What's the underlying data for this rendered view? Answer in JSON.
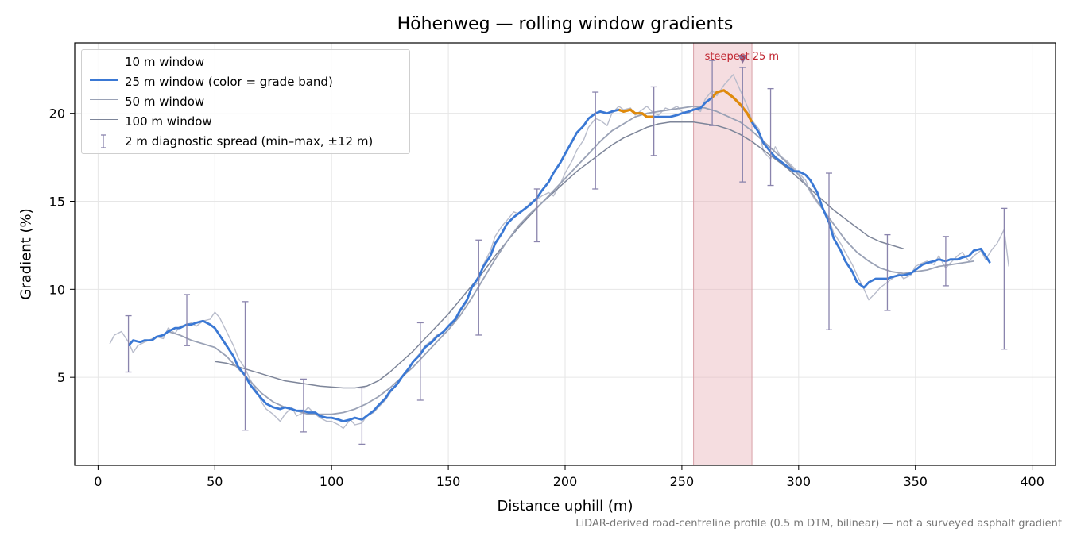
{
  "chart_data": {
    "type": "line",
    "title": "Höhenweg — rolling window gradients",
    "xlabel": "Distance uphill (m)",
    "ylabel": "Gradient (%)",
    "xlim": [
      -10,
      410
    ],
    "ylim": [
      0,
      24
    ],
    "xticks": [
      0,
      50,
      100,
      150,
      200,
      250,
      300,
      350,
      400
    ],
    "yticks": [
      5,
      10,
      15,
      20
    ],
    "grid": true,
    "legend_position": "top-left",
    "series": [
      {
        "name": "10 m window",
        "color": "#b8bccb",
        "x": [
          5,
          7,
          10,
          13,
          15,
          17,
          20,
          25,
          28,
          30,
          33,
          35,
          38,
          40,
          42,
          45,
          48,
          50,
          52,
          55,
          58,
          60,
          63,
          65,
          68,
          70,
          72,
          75,
          78,
          80,
          83,
          85,
          88,
          90,
          93,
          95,
          98,
          100,
          103,
          105,
          108,
          110,
          113,
          115,
          118,
          120,
          123,
          125,
          128,
          130,
          133,
          135,
          138,
          140,
          143,
          145,
          148,
          150,
          153,
          155,
          158,
          160,
          163,
          165,
          168,
          170,
          173,
          175,
          178,
          180,
          183,
          185,
          188,
          190,
          193,
          195,
          198,
          200,
          203,
          205,
          208,
          210,
          213,
          215,
          218,
          220,
          223,
          225,
          228,
          230,
          233,
          235,
          238,
          240,
          243,
          245,
          248,
          250,
          253,
          255,
          258,
          260,
          263,
          265,
          268,
          270,
          272,
          275,
          278,
          280,
          283,
          285,
          288,
          290,
          292,
          295,
          298,
          300,
          303,
          305,
          308,
          310,
          313,
          315,
          318,
          320,
          323,
          325,
          328,
          330,
          333,
          335,
          338,
          340,
          343,
          345,
          348,
          350,
          353,
          355,
          358,
          360,
          363,
          365,
          368,
          370,
          373,
          375,
          378,
          380,
          383,
          385,
          388,
          390
        ],
        "y": [
          6.9,
          7.4,
          7.6,
          7.0,
          6.4,
          6.8,
          7.0,
          7.3,
          7.2,
          7.8,
          7.5,
          7.9,
          8.0,
          8.1,
          7.9,
          8.2,
          8.3,
          8.7,
          8.4,
          7.6,
          6.8,
          6.1,
          5.5,
          4.9,
          4.2,
          3.6,
          3.2,
          2.9,
          2.5,
          2.9,
          3.3,
          2.8,
          3.0,
          3.3,
          2.9,
          2.7,
          2.5,
          2.5,
          2.3,
          2.1,
          2.6,
          2.3,
          2.4,
          2.8,
          3.0,
          3.3,
          3.7,
          4.1,
          4.6,
          5.0,
          5.5,
          5.9,
          6.4,
          6.8,
          7.1,
          7.4,
          7.6,
          7.9,
          8.2,
          8.7,
          9.3,
          10.1,
          10.4,
          11.4,
          12.2,
          13.0,
          13.6,
          13.9,
          14.4,
          14.3,
          14.6,
          14.9,
          15.1,
          15.3,
          15.5,
          15.3,
          16.0,
          16.6,
          17.3,
          17.9,
          18.5,
          19.2,
          19.7,
          19.6,
          19.3,
          20.0,
          20.4,
          20.2,
          20.3,
          19.9,
          20.2,
          20.4,
          20.0,
          19.9,
          20.3,
          20.2,
          20.4,
          20.1,
          20.0,
          20.3,
          20.1,
          20.8,
          21.3,
          21.0,
          21.6,
          21.9,
          22.2,
          21.3,
          20.4,
          19.6,
          19.1,
          17.8,
          17.4,
          18.1,
          17.6,
          17.3,
          16.9,
          16.6,
          16.2,
          15.5,
          14.9,
          14.6,
          14.0,
          13.2,
          12.6,
          12.1,
          11.4,
          10.8,
          10.0,
          9.4,
          9.8,
          10.1,
          10.4,
          10.6,
          10.9,
          10.6,
          10.8,
          11.3,
          11.5,
          11.6,
          11.4,
          11.9,
          11.2,
          11.5,
          11.9,
          12.1,
          11.6,
          11.9,
          12.2,
          11.7,
          12.3,
          12.6,
          13.4,
          11.3
        ]
      },
      {
        "name": "25 m window (color = grade band)",
        "color": "#3a78d4",
        "band_color": "#e08a0b",
        "band_ranges": [
          [
            222,
            238
          ],
          [
            262,
            280
          ]
        ],
        "x": [
          13,
          15,
          18,
          20,
          23,
          25,
          28,
          30,
          33,
          35,
          38,
          40,
          42,
          45,
          48,
          50,
          52,
          55,
          58,
          60,
          63,
          65,
          68,
          70,
          72,
          75,
          78,
          80,
          83,
          85,
          88,
          90,
          93,
          95,
          98,
          100,
          103,
          105,
          108,
          110,
          113,
          115,
          118,
          120,
          123,
          125,
          128,
          130,
          133,
          135,
          138,
          140,
          143,
          145,
          148,
          150,
          153,
          155,
          158,
          160,
          163,
          165,
          168,
          170,
          173,
          175,
          178,
          180,
          183,
          185,
          188,
          190,
          193,
          195,
          198,
          200,
          203,
          205,
          208,
          210,
          213,
          215,
          218,
          220,
          223,
          225,
          228,
          230,
          233,
          235,
          238,
          240,
          243,
          245,
          248,
          250,
          253,
          255,
          258,
          260,
          263,
          265,
          268,
          270,
          272,
          275,
          278,
          280,
          283,
          285,
          288,
          290,
          292,
          295,
          298,
          300,
          303,
          305,
          308,
          310,
          313,
          315,
          318,
          320,
          323,
          325,
          328,
          330,
          333,
          335,
          338,
          340,
          343,
          345,
          348,
          350,
          353,
          355,
          358,
          360,
          363,
          365,
          368,
          370,
          373,
          375,
          378,
          380,
          382
        ],
        "y": [
          6.8,
          7.1,
          7.0,
          7.1,
          7.1,
          7.3,
          7.4,
          7.6,
          7.8,
          7.8,
          8.0,
          8.0,
          8.1,
          8.2,
          8.0,
          7.8,
          7.4,
          6.8,
          6.2,
          5.6,
          5.1,
          4.6,
          4.1,
          3.8,
          3.5,
          3.3,
          3.2,
          3.3,
          3.2,
          3.1,
          3.1,
          3.0,
          3.0,
          2.8,
          2.7,
          2.7,
          2.6,
          2.5,
          2.6,
          2.7,
          2.6,
          2.8,
          3.1,
          3.4,
          3.8,
          4.2,
          4.6,
          5.0,
          5.5,
          5.9,
          6.3,
          6.7,
          7.0,
          7.3,
          7.6,
          7.9,
          8.3,
          8.8,
          9.4,
          10.1,
          10.7,
          11.3,
          11.9,
          12.6,
          13.2,
          13.7,
          14.1,
          14.3,
          14.6,
          14.8,
          15.2,
          15.6,
          16.1,
          16.6,
          17.2,
          17.7,
          18.4,
          18.9,
          19.3,
          19.7,
          20.0,
          20.1,
          20.0,
          20.1,
          20.2,
          20.1,
          20.2,
          20.0,
          20.0,
          19.8,
          19.8,
          19.8,
          19.8,
          19.8,
          19.9,
          20.0,
          20.1,
          20.2,
          20.3,
          20.6,
          20.9,
          21.2,
          21.3,
          21.1,
          20.9,
          20.5,
          20.0,
          19.5,
          18.9,
          18.3,
          17.8,
          17.5,
          17.3,
          17.0,
          16.7,
          16.7,
          16.5,
          16.2,
          15.5,
          14.7,
          13.8,
          12.9,
          12.2,
          11.6,
          11.0,
          10.4,
          10.1,
          10.4,
          10.6,
          10.6,
          10.6,
          10.7,
          10.8,
          10.8,
          10.9,
          11.1,
          11.4,
          11.5,
          11.6,
          11.7,
          11.6,
          11.7,
          11.7,
          11.8,
          11.9,
          12.2,
          12.3,
          11.9,
          11.5
        ]
      },
      {
        "name": "50 m window",
        "color": "#9aa2b6",
        "x": [
          30,
          35,
          40,
          45,
          50,
          55,
          60,
          65,
          70,
          75,
          80,
          85,
          90,
          95,
          100,
          105,
          110,
          115,
          120,
          125,
          130,
          135,
          140,
          145,
          150,
          155,
          160,
          165,
          170,
          175,
          180,
          185,
          190,
          195,
          200,
          205,
          210,
          215,
          220,
          225,
          230,
          235,
          240,
          245,
          250,
          255,
          260,
          265,
          270,
          275,
          280,
          285,
          290,
          295,
          300,
          305,
          310,
          315,
          320,
          325,
          330,
          335,
          340,
          345,
          350,
          355,
          360,
          365,
          370,
          375
        ],
        "y": [
          7.6,
          7.4,
          7.1,
          6.9,
          6.7,
          6.2,
          5.5,
          4.8,
          4.1,
          3.6,
          3.3,
          3.1,
          2.9,
          2.9,
          2.9,
          3.0,
          3.2,
          3.5,
          3.9,
          4.4,
          5.0,
          5.6,
          6.3,
          7.0,
          7.7,
          8.5,
          9.5,
          10.6,
          11.7,
          12.7,
          13.6,
          14.3,
          14.9,
          15.6,
          16.3,
          17.0,
          17.7,
          18.4,
          19.0,
          19.4,
          19.8,
          20.0,
          20.1,
          20.2,
          20.3,
          20.4,
          20.3,
          20.1,
          19.8,
          19.5,
          19.0,
          18.4,
          17.8,
          17.2,
          16.5,
          15.6,
          14.6,
          13.7,
          12.8,
          12.1,
          11.6,
          11.2,
          11.0,
          10.9,
          11.0,
          11.1,
          11.3,
          11.4,
          11.5,
          11.6
        ]
      },
      {
        "name": "100 m window",
        "color": "#7d8599",
        "x": [
          50,
          55,
          60,
          65,
          70,
          75,
          80,
          85,
          90,
          95,
          100,
          105,
          110,
          115,
          120,
          125,
          130,
          135,
          140,
          145,
          150,
          155,
          160,
          165,
          170,
          175,
          180,
          185,
          190,
          195,
          200,
          205,
          210,
          215,
          220,
          225,
          230,
          235,
          240,
          245,
          250,
          255,
          260,
          265,
          270,
          275,
          280,
          285,
          290,
          295,
          300,
          305,
          310,
          315,
          320,
          325,
          330,
          335,
          340,
          345
        ],
        "y": [
          5.9,
          5.8,
          5.6,
          5.4,
          5.2,
          5.0,
          4.8,
          4.7,
          4.6,
          4.5,
          4.45,
          4.4,
          4.4,
          4.5,
          4.8,
          5.3,
          5.9,
          6.5,
          7.2,
          7.9,
          8.6,
          9.4,
          10.2,
          11.0,
          11.9,
          12.7,
          13.5,
          14.2,
          14.9,
          15.5,
          16.1,
          16.7,
          17.2,
          17.7,
          18.2,
          18.6,
          18.9,
          19.2,
          19.4,
          19.5,
          19.5,
          19.5,
          19.4,
          19.3,
          19.1,
          18.8,
          18.4,
          17.9,
          17.4,
          16.9,
          16.3,
          15.7,
          15.1,
          14.5,
          14.0,
          13.5,
          13.0,
          12.7,
          12.5,
          12.3
        ]
      }
    ],
    "diagnostic_spread": {
      "name": "2 m diagnostic spread (min–max, ±12 m)",
      "color": "#8a84ad",
      "points": [
        {
          "x": 13,
          "min": 5.3,
          "max": 8.5
        },
        {
          "x": 38,
          "min": 6.8,
          "max": 9.7
        },
        {
          "x": 63,
          "min": 2.0,
          "max": 9.3
        },
        {
          "x": 88,
          "min": 1.9,
          "max": 4.9
        },
        {
          "x": 113,
          "min": 1.2,
          "max": 4.4
        },
        {
          "x": 138,
          "min": 3.7,
          "max": 8.1
        },
        {
          "x": 163,
          "min": 7.4,
          "max": 12.8
        },
        {
          "x": 188,
          "min": 12.7,
          "max": 15.7
        },
        {
          "x": 213,
          "min": 15.7,
          "max": 21.2
        },
        {
          "x": 238,
          "min": 17.6,
          "max": 21.5
        },
        {
          "x": 263,
          "min": 19.3,
          "max": 23.0
        },
        {
          "x": 276,
          "min": 16.1,
          "max": 22.6
        },
        {
          "x": 288,
          "min": 15.9,
          "max": 21.4
        },
        {
          "x": 313,
          "min": 7.7,
          "max": 16.6
        },
        {
          "x": 338,
          "min": 8.8,
          "max": 13.1
        },
        {
          "x": 363,
          "min": 10.2,
          "max": 13.0
        },
        {
          "x": 388,
          "min": 6.6,
          "max": 14.6
        }
      ]
    },
    "highlight": {
      "label": "steepest 25 m",
      "x_range": [
        255,
        280
      ],
      "marker_x": 276,
      "marker_y": 23.1,
      "color": "#e8b4ba",
      "label_color": "#c0242f"
    },
    "footnote": "LiDAR-derived road-centreline profile (0.5 m DTM, bilinear) — not a surveyed asphalt gradient"
  }
}
